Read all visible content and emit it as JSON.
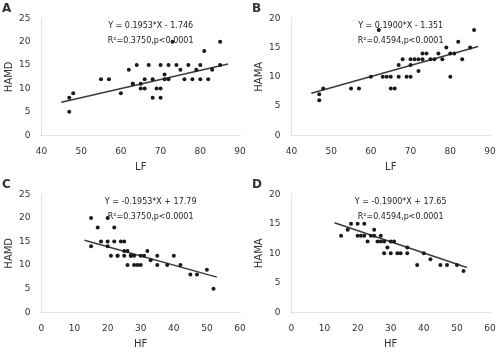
{
  "chart_data": [
    {
      "type": "scatter",
      "title": "A",
      "xlabel": "LF",
      "ylabel": "HAMD",
      "annotations": [
        "Y = 0.1953*X - 1.746",
        "R²=0.3750,p<0.0001"
      ],
      "xlim": [
        40,
        90
      ],
      "ylim": [
        0,
        25
      ],
      "xticks": [
        40,
        50,
        60,
        70,
        80,
        90
      ],
      "yticks": [
        0,
        5,
        10,
        15,
        20,
        25
      ],
      "grid": false,
      "series": [
        {
          "type": "scatter",
          "color": "#1a1a1a",
          "x": [
            47,
            47,
            48,
            55,
            57,
            60,
            62,
            63,
            63,
            64,
            65,
            65,
            66,
            66,
            67,
            68,
            68,
            69,
            70,
            70,
            70,
            71,
            71,
            72,
            72,
            73,
            74,
            75,
            76,
            77,
            78,
            79,
            80,
            80,
            81,
            82,
            83,
            85,
            85
          ],
          "values": [
            5,
            8,
            9,
            12,
            12,
            9,
            14,
            11,
            11,
            15,
            10,
            11,
            10,
            12,
            15,
            8,
            12,
            10,
            10,
            15,
            8,
            12,
            13,
            12,
            15,
            20,
            15,
            14,
            12,
            15,
            12,
            14,
            15,
            12,
            18,
            12,
            14,
            15,
            20
          ]
        },
        {
          "type": "line",
          "color": "#3a3a3a",
          "x": [
            45,
            87
          ],
          "values": [
            7.0425,
            15.2451
          ]
        }
      ]
    },
    {
      "type": "scatter",
      "title": "B",
      "xlabel": "LF",
      "ylabel": "HAMA",
      "annotations": [
        "Y = 0.1900*X - 1.351",
        "R²=0.4594,p<0.0001"
      ],
      "xlim": [
        40,
        90
      ],
      "ylim": [
        0,
        20
      ],
      "xticks": [
        40,
        50,
        60,
        70,
        80,
        90
      ],
      "yticks": [
        0,
        5,
        10,
        15,
        20
      ],
      "grid": false,
      "series": [
        {
          "type": "scatter",
          "color": "#1a1a1a",
          "x": [
            47,
            47,
            48,
            55,
            57,
            60,
            62,
            63,
            64,
            65,
            65,
            66,
            67,
            67,
            68,
            69,
            70,
            70,
            70,
            71,
            72,
            72,
            73,
            73,
            74,
            75,
            76,
            77,
            78,
            79,
            80,
            80,
            81,
            82,
            83,
            85,
            86
          ],
          "values": [
            6,
            7,
            8,
            8,
            8,
            10,
            18,
            10,
            10,
            8,
            10,
            8,
            10,
            12,
            13,
            10,
            13,
            12,
            10,
            13,
            13,
            11,
            13,
            14,
            14,
            13,
            13,
            14,
            13,
            15,
            14,
            10,
            14,
            16,
            13,
            15,
            18
          ]
        },
        {
          "type": "line",
          "color": "#3a3a3a",
          "x": [
            45,
            87
          ],
          "values": [
            7.199,
            15.179
          ]
        }
      ]
    },
    {
      "type": "scatter",
      "title": "C",
      "xlabel": "HF",
      "ylabel": "HAMD",
      "annotations": [
        "Y = -0.1953*X + 17.79",
        "R²=0.3750,p<0.0001"
      ],
      "xlim": [
        0,
        60
      ],
      "ylim": [
        0,
        25
      ],
      "xticks": [
        0,
        10,
        20,
        30,
        40,
        50,
        60
      ],
      "yticks": [
        0,
        5,
        10,
        15,
        20,
        25
      ],
      "grid": false,
      "series": [
        {
          "type": "scatter",
          "color": "#1a1a1a",
          "x": [
            15,
            15,
            17,
            18,
            20,
            20,
            20,
            21,
            22,
            22,
            23,
            23,
            24,
            25,
            25,
            25,
            26,
            26,
            27,
            27,
            28,
            28,
            29,
            30,
            30,
            31,
            32,
            33,
            35,
            35,
            38,
            40,
            42,
            45,
            47,
            50,
            52
          ],
          "values": [
            14,
            20,
            18,
            15,
            15,
            20,
            14,
            12,
            15,
            18,
            12,
            12,
            15,
            15,
            12,
            13,
            10,
            13,
            12,
            12,
            10,
            12,
            10,
            12,
            10,
            12,
            13,
            11,
            10,
            12,
            10,
            12,
            10,
            8,
            8,
            9,
            5
          ]
        },
        {
          "type": "line",
          "color": "#3a3a3a",
          "x": [
            13,
            53
          ],
          "values": [
            15.2511,
            7.4391
          ]
        }
      ]
    },
    {
      "type": "scatter",
      "title": "D",
      "xlabel": "HF",
      "ylabel": "HAMA",
      "annotations": [
        "Y = -0.1900*X + 17.65",
        "R²=0.4594,p<0.0001"
      ],
      "xlim": [
        0,
        60
      ],
      "ylim": [
        0,
        20
      ],
      "xticks": [
        0,
        10,
        20,
        30,
        40,
        50,
        60
      ],
      "yticks": [
        0,
        5,
        10,
        15,
        20
      ],
      "grid": false,
      "series": [
        {
          "type": "scatter",
          "color": "#1a1a1a",
          "x": [
            15,
            17,
            18,
            20,
            20,
            21,
            22,
            22,
            23,
            24,
            25,
            25,
            26,
            27,
            27,
            28,
            28,
            29,
            30,
            30,
            31,
            32,
            33,
            35,
            35,
            38,
            40,
            42,
            45,
            47,
            50,
            52
          ],
          "values": [
            13,
            14,
            15,
            13,
            15,
            13,
            13,
            15,
            12,
            13,
            14,
            13,
            12,
            12,
            13,
            12,
            10,
            11,
            10,
            12,
            12,
            10,
            10,
            10,
            11,
            8,
            10,
            9,
            8,
            8,
            8,
            7
          ]
        },
        {
          "type": "line",
          "color": "#3a3a3a",
          "x": [
            13,
            53
          ],
          "values": [
            15.18,
            7.58
          ]
        }
      ]
    }
  ]
}
